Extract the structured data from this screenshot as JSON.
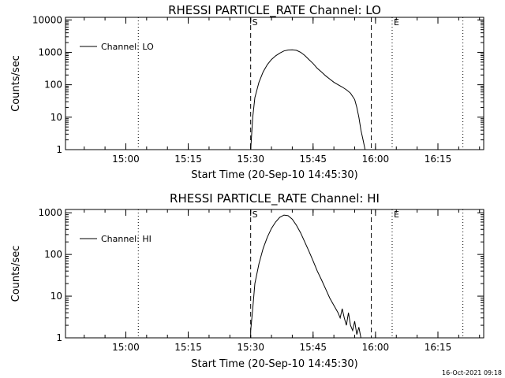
{
  "stamp": "16-Oct-2021 09:18",
  "chart_data": [
    {
      "type": "line",
      "title": "RHESSI PARTICLE_RATE Channel: LO",
      "xlabel": "Start Time (20-Sep-10 14:45:30)",
      "ylabel": "Counts/sec",
      "y_scale": "log",
      "ylim": [
        1,
        12000
      ],
      "xlim": [
        "14:45:30",
        "16:26:00"
      ],
      "x_ticks": [
        "15:00",
        "15:15",
        "15:30",
        "15:45",
        "16:00",
        "16:15"
      ],
      "y_ticks": [
        "1",
        "10",
        "100",
        "1000",
        "10000"
      ],
      "legend": {
        "entries": [
          "Channel: LO"
        ],
        "position": "top-left"
      },
      "markers": [
        {
          "label": "S",
          "time": "15:30:00",
          "style": "dashed"
        },
        {
          "label": "",
          "time": "15:59:00",
          "style": "dashed"
        },
        {
          "label": "E",
          "time": "16:04:00",
          "style": "dotted"
        },
        {
          "label": "",
          "time": "15:03:00",
          "style": "dotted"
        },
        {
          "label": "",
          "time": "16:21:00",
          "style": "dotted"
        }
      ],
      "series": [
        {
          "name": "Channel: LO",
          "x": [
            "15:30:00",
            "15:30:30",
            "15:31:00",
            "15:32:00",
            "15:33:00",
            "15:34:00",
            "15:35:00",
            "15:36:00",
            "15:37:00",
            "15:38:00",
            "15:39:00",
            "15:40:00",
            "15:41:00",
            "15:42:00",
            "15:43:00",
            "15:44:00",
            "15:45:00",
            "15:46:00",
            "15:47:00",
            "15:48:00",
            "15:49:00",
            "15:50:00",
            "15:51:00",
            "15:52:00",
            "15:53:00",
            "15:54:00",
            "15:55:00",
            "15:55:30",
            "15:56:00",
            "15:56:30",
            "15:57:00",
            "15:57:30"
          ],
          "y": [
            1.0,
            10,
            40,
            120,
            250,
            420,
            600,
            780,
            950,
            1100,
            1180,
            1200,
            1150,
            1000,
            800,
            600,
            450,
            320,
            250,
            190,
            150,
            120,
            100,
            85,
            70,
            55,
            35,
            20,
            10,
            4,
            2,
            1
          ]
        }
      ]
    },
    {
      "type": "line",
      "title": "RHESSI PARTICLE_RATE Channel: HI",
      "xlabel": "Start Time (20-Sep-10 14:45:30)",
      "ylabel": "Counts/sec",
      "y_scale": "log",
      "ylim": [
        1,
        1200
      ],
      "xlim": [
        "14:45:30",
        "16:26:00"
      ],
      "x_ticks": [
        "15:00",
        "15:15",
        "15:30",
        "15:45",
        "16:00",
        "16:15"
      ],
      "y_ticks": [
        "1",
        "10",
        "100",
        "1000"
      ],
      "legend": {
        "entries": [
          "Channel: HI"
        ],
        "position": "top-left"
      },
      "markers": [
        {
          "label": "S",
          "time": "15:30:00",
          "style": "dashed"
        },
        {
          "label": "",
          "time": "15:59:00",
          "style": "dashed"
        },
        {
          "label": "E",
          "time": "16:04:00",
          "style": "dotted"
        },
        {
          "label": "",
          "time": "15:03:00",
          "style": "dotted"
        },
        {
          "label": "",
          "time": "16:21:00",
          "style": "dotted"
        }
      ],
      "series": [
        {
          "name": "Channel: HI",
          "x": [
            "15:30:00",
            "15:30:30",
            "15:31:00",
            "15:32:00",
            "15:33:00",
            "15:34:00",
            "15:35:00",
            "15:36:00",
            "15:37:00",
            "15:38:00",
            "15:39:00",
            "15:40:00",
            "15:41:00",
            "15:42:00",
            "15:43:00",
            "15:44:00",
            "15:45:00",
            "15:46:00",
            "15:47:00",
            "15:48:00",
            "15:49:00",
            "15:50:00",
            "15:51:00",
            "15:51:30",
            "15:52:00",
            "15:52:30",
            "15:53:00",
            "15:53:30",
            "15:54:00",
            "15:54:30",
            "15:55:00",
            "15:55:30",
            "15:56:00",
            "15:56:30"
          ],
          "y": [
            1.5,
            5,
            20,
            60,
            140,
            260,
            420,
            600,
            780,
            880,
            850,
            700,
            500,
            330,
            200,
            120,
            70,
            40,
            25,
            15,
            9,
            6,
            4,
            3,
            5,
            3,
            2,
            4,
            2,
            1.5,
            2.5,
            1.2,
            1.8,
            1
          ]
        }
      ]
    }
  ]
}
